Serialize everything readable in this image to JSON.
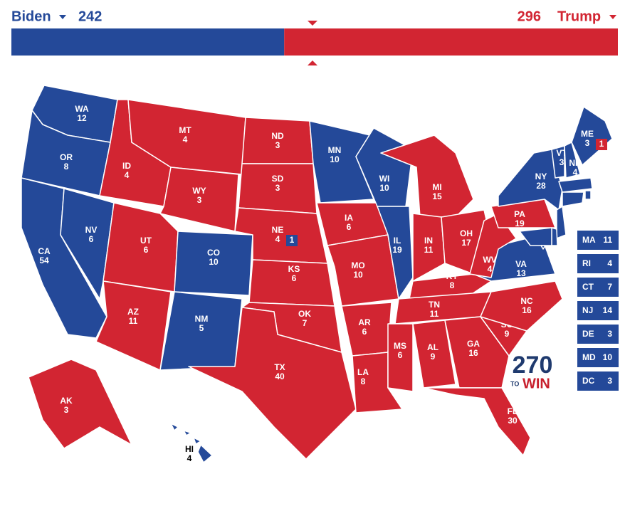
{
  "header": {
    "left": {
      "name": "Biden",
      "votes": 242,
      "color": "#244999"
    },
    "right": {
      "name": "Trump",
      "votes": 296,
      "color": "#d22532"
    }
  },
  "states": [
    {
      "abbr": "WA",
      "votes": 12,
      "color": "#244999"
    },
    {
      "abbr": "OR",
      "votes": 8,
      "color": "#244999"
    },
    {
      "abbr": "CA",
      "votes": 54,
      "color": "#244999"
    },
    {
      "abbr": "NV",
      "votes": 6,
      "color": "#244999"
    },
    {
      "abbr": "ID",
      "votes": 4,
      "color": "#d22532"
    },
    {
      "abbr": "MT",
      "votes": 4,
      "color": "#d22532"
    },
    {
      "abbr": "WY",
      "votes": 3,
      "color": "#d22532"
    },
    {
      "abbr": "UT",
      "votes": 6,
      "color": "#d22532"
    },
    {
      "abbr": "CO",
      "votes": 10,
      "color": "#244999"
    },
    {
      "abbr": "AZ",
      "votes": 11,
      "color": "#d22532"
    },
    {
      "abbr": "NM",
      "votes": 5,
      "color": "#244999"
    },
    {
      "abbr": "ND",
      "votes": 3,
      "color": "#d22532"
    },
    {
      "abbr": "SD",
      "votes": 3,
      "color": "#d22532"
    },
    {
      "abbr": "NE",
      "votes": 4,
      "color": "#d22532",
      "split": {
        "votes": 1,
        "color": "#244999"
      }
    },
    {
      "abbr": "KS",
      "votes": 6,
      "color": "#d22532"
    },
    {
      "abbr": "OK",
      "votes": 7,
      "color": "#d22532"
    },
    {
      "abbr": "TX",
      "votes": 40,
      "color": "#d22532"
    },
    {
      "abbr": "MN",
      "votes": 10,
      "color": "#244999"
    },
    {
      "abbr": "IA",
      "votes": 6,
      "color": "#d22532"
    },
    {
      "abbr": "MO",
      "votes": 10,
      "color": "#d22532"
    },
    {
      "abbr": "AR",
      "votes": 6,
      "color": "#d22532"
    },
    {
      "abbr": "LA",
      "votes": 8,
      "color": "#d22532"
    },
    {
      "abbr": "WI",
      "votes": 10,
      "color": "#244999"
    },
    {
      "abbr": "IL",
      "votes": 19,
      "color": "#244999"
    },
    {
      "abbr": "MI",
      "votes": 15,
      "color": "#d22532"
    },
    {
      "abbr": "IN",
      "votes": 11,
      "color": "#d22532"
    },
    {
      "abbr": "OH",
      "votes": 17,
      "color": "#d22532"
    },
    {
      "abbr": "KY",
      "votes": 8,
      "color": "#d22532"
    },
    {
      "abbr": "TN",
      "votes": 11,
      "color": "#d22532"
    },
    {
      "abbr": "MS",
      "votes": 6,
      "color": "#d22532"
    },
    {
      "abbr": "AL",
      "votes": 9,
      "color": "#d22532"
    },
    {
      "abbr": "GA",
      "votes": 16,
      "color": "#d22532"
    },
    {
      "abbr": "FL",
      "votes": 30,
      "color": "#d22532"
    },
    {
      "abbr": "SC",
      "votes": 9,
      "color": "#d22532"
    },
    {
      "abbr": "NC",
      "votes": 16,
      "color": "#d22532"
    },
    {
      "abbr": "VA",
      "votes": 13,
      "color": "#244999"
    },
    {
      "abbr": "WV",
      "votes": 4,
      "color": "#d22532"
    },
    {
      "abbr": "PA",
      "votes": 19,
      "color": "#d22532"
    },
    {
      "abbr": "NY",
      "votes": 28,
      "color": "#244999"
    },
    {
      "abbr": "VT",
      "votes": 3,
      "color": "#244999"
    },
    {
      "abbr": "NH",
      "votes": 4,
      "color": "#244999"
    },
    {
      "abbr": "ME",
      "votes": 3,
      "color": "#244999",
      "split": {
        "votes": 1,
        "color": "#d22532"
      }
    },
    {
      "abbr": "AK",
      "votes": 3,
      "color": "#d22532"
    },
    {
      "abbr": "HI",
      "votes": 4,
      "color": "#244999"
    }
  ],
  "sidebar": [
    {
      "abbr": "MA",
      "votes": 11,
      "color": "#244999"
    },
    {
      "abbr": "RI",
      "votes": 4,
      "color": "#244999"
    },
    {
      "abbr": "CT",
      "votes": 7,
      "color": "#244999"
    },
    {
      "abbr": "NJ",
      "votes": 14,
      "color": "#244999"
    },
    {
      "abbr": "DE",
      "votes": 3,
      "color": "#244999"
    },
    {
      "abbr": "MD",
      "votes": 10,
      "color": "#244999"
    },
    {
      "abbr": "DC",
      "votes": 3,
      "color": "#244999"
    }
  ],
  "logo": {
    "number": "270",
    "small": "TO",
    "word": "WIN"
  }
}
